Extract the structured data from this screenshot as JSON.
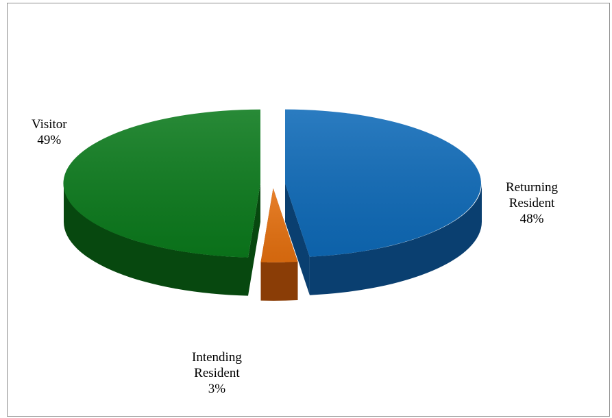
{
  "chart_data": {
    "type": "pie",
    "title": "",
    "style": "3d-exploded",
    "slices": [
      {
        "label": "Returning Resident",
        "label_lines": [
          "Returning",
          "Resident"
        ],
        "value": 48,
        "value_text": "48%",
        "color": "#0e6ab8",
        "side_color": "#0a3f70"
      },
      {
        "label": "Intending Resident",
        "label_lines": [
          "Intending",
          "Resident"
        ],
        "value": 3,
        "value_text": "3%",
        "color": "#e5700f",
        "side_color": "#8a3d06"
      },
      {
        "label": "Visitor",
        "label_lines": [
          "Visitor"
        ],
        "value": 49,
        "value_text": "49%",
        "color": "#0b7a1c",
        "side_color": "#07480f"
      }
    ]
  }
}
